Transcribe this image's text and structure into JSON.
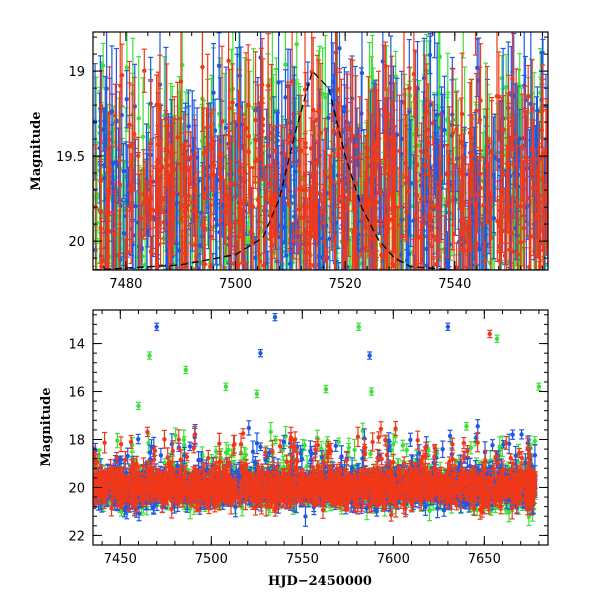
{
  "chart_data": [
    {
      "type": "scatter",
      "title": "",
      "xlabel": "",
      "ylabel": "Magnitude",
      "xlim": [
        7474,
        7557
      ],
      "ylim": [
        20.17,
        18.77
      ],
      "y_inverted": true,
      "xticks": [
        7480,
        7500,
        7520,
        7540
      ],
      "xtick_labels": [
        "7480",
        "7500",
        "7520",
        "7540"
      ],
      "yticks": [
        19,
        19.5,
        20
      ],
      "ytick_labels": [
        "19",
        "19.5",
        "20"
      ],
      "series_colors": {
        "blue": "#1f57e6",
        "red": "#f0391a",
        "green": "#3ee03a"
      },
      "model_curve": {
        "style": "dashed",
        "color": "#000000",
        "x": [
          7474,
          7490,
          7500,
          7505,
          7508,
          7511,
          7514,
          7517,
          7520,
          7523,
          7526,
          7529,
          7532,
          7540,
          7557
        ],
        "y": [
          20.17,
          20.14,
          20.08,
          19.98,
          19.75,
          19.35,
          19.0,
          19.1,
          19.5,
          19.8,
          19.99,
          20.1,
          20.15,
          20.17,
          20.17
        ]
      },
      "random_seed": 7
    },
    {
      "type": "scatter",
      "title": "",
      "xlabel": "HJD−2450000",
      "ylabel": "Magnitude",
      "xlim": [
        7435,
        7685
      ],
      "ylim": [
        22.4,
        12.6
      ],
      "y_inverted": true,
      "xticks": [
        7450,
        7500,
        7550,
        7600,
        7650
      ],
      "xtick_labels": [
        "7450",
        "7500",
        "7550",
        "7600",
        "7650"
      ],
      "yticks": [
        14,
        16,
        18,
        20,
        22
      ],
      "ytick_labels": [
        "14",
        "16",
        "18",
        "20",
        "22"
      ],
      "series_colors": {
        "blue": "#1f57e6",
        "red": "#f0391a",
        "green": "#3ee03a"
      },
      "outliers": [
        {
          "series": "blue",
          "x": 7470,
          "y": 13.3
        },
        {
          "series": "blue",
          "x": 7535,
          "y": 12.9
        },
        {
          "series": "blue",
          "x": 7527,
          "y": 14.4
        },
        {
          "series": "blue",
          "x": 7587,
          "y": 14.5
        },
        {
          "series": "blue",
          "x": 7630,
          "y": 13.3
        },
        {
          "series": "green",
          "x": 7466,
          "y": 14.5
        },
        {
          "series": "green",
          "x": 7486,
          "y": 15.1
        },
        {
          "series": "green",
          "x": 7460,
          "y": 16.6
        },
        {
          "series": "green",
          "x": 7508,
          "y": 15.8
        },
        {
          "series": "green",
          "x": 7525,
          "y": 16.1
        },
        {
          "series": "green",
          "x": 7563,
          "y": 15.9
        },
        {
          "series": "green",
          "x": 7581,
          "y": 13.3
        },
        {
          "series": "green",
          "x": 7588,
          "y": 16.0
        },
        {
          "series": "green",
          "x": 7657,
          "y": 13.8
        },
        {
          "series": "green",
          "x": 7680,
          "y": 15.8
        },
        {
          "series": "red",
          "x": 7653,
          "y": 13.6
        }
      ],
      "random_seed": 11
    }
  ]
}
